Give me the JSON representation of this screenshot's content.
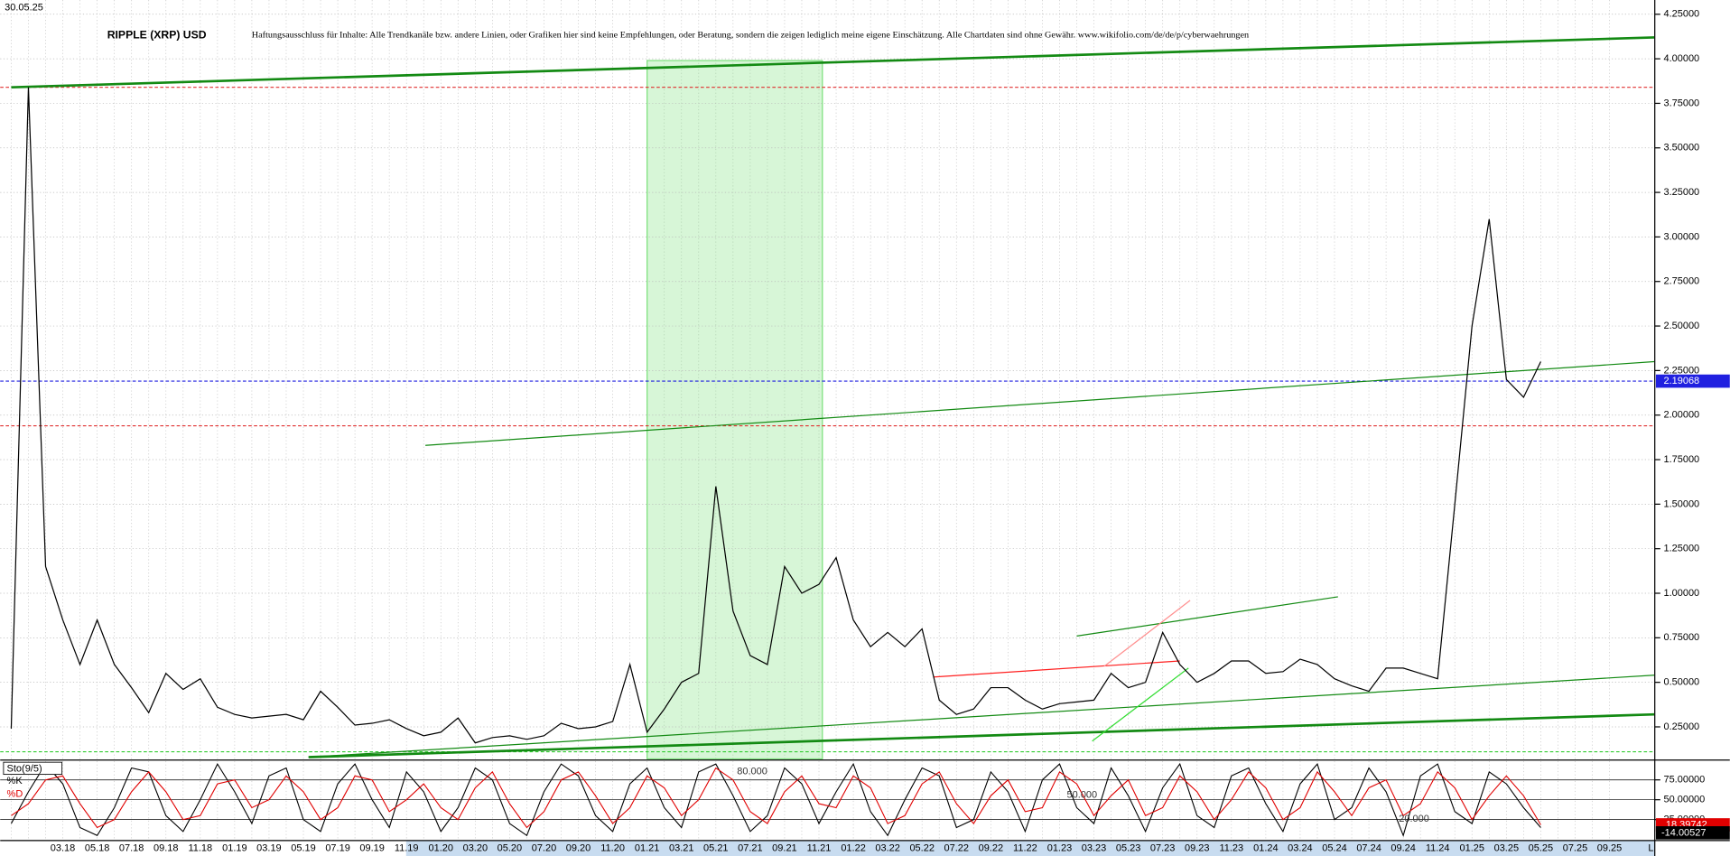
{
  "chart_data": [
    {
      "type": "line",
      "date": "30.05.25",
      "title": "RIPPLE (XRP) USD",
      "subtitle": "Haftungsausschluss für Inhalte: Alle Trendkanäle bzw. andere Linien, oder Grafiken hier sind keine Empfehlungen, oder Beratung, sondern die zeigen lediglich meine eigene Einschätzung. Alle Chartdaten sind ohne Gewähr. www.wikifolio.com/de/de/p/cyberwaehrungen",
      "categories": [
        null,
        null,
        null,
        "03.18",
        null,
        "05.18",
        null,
        "07.18",
        null,
        "09.18",
        null,
        "11.18",
        null,
        "01.19",
        null,
        "03.19",
        null,
        "05.19",
        null,
        "07.19",
        null,
        "09.19",
        null,
        "11.19",
        null,
        "01.20",
        null,
        "03.20",
        null,
        "05.20",
        null,
        "07.20",
        null,
        "09.20",
        null,
        "11.20",
        null,
        "01.21",
        null,
        "03.21",
        null,
        "05.21",
        null,
        "07.21",
        null,
        "09.21",
        null,
        "11.21",
        null,
        "01.22",
        null,
        "03.22",
        null,
        "05.22",
        null,
        "07.22",
        null,
        "09.22",
        null,
        "11.22",
        null,
        "01.23",
        null,
        "03.23",
        null,
        "05.23",
        null,
        "07.23",
        null,
        "09.23",
        null,
        "11.23",
        null,
        "01.24",
        null,
        "03.24",
        null,
        "05.24",
        null,
        "07.24",
        null,
        "09.24",
        null,
        "11.24",
        null,
        "01.25",
        null,
        "03.25",
        null,
        "05.25",
        null,
        "07.25",
        null,
        "09.25"
      ],
      "x_end_label": "L",
      "values": [
        0.24,
        3.84,
        1.15,
        0.85,
        0.6,
        0.85,
        0.6,
        0.47,
        0.33,
        0.55,
        0.46,
        0.52,
        0.36,
        0.32,
        0.3,
        0.31,
        0.32,
        0.29,
        0.45,
        0.36,
        0.26,
        0.27,
        0.29,
        0.24,
        0.2,
        0.22,
        0.3,
        0.16,
        0.19,
        0.2,
        0.18,
        0.2,
        0.27,
        0.24,
        0.25,
        0.28,
        0.6,
        0.22,
        0.35,
        0.5,
        0.55,
        1.6,
        0.9,
        0.65,
        0.6,
        1.15,
        1.0,
        1.05,
        1.2,
        0.85,
        0.7,
        0.78,
        0.7,
        0.8,
        0.4,
        0.32,
        0.35,
        0.47,
        0.47,
        0.4,
        0.35,
        0.38,
        0.39,
        0.4,
        0.55,
        0.47,
        0.5,
        0.78,
        0.6,
        0.5,
        0.55,
        0.62,
        0.62,
        0.55,
        0.56,
        0.63,
        0.6,
        0.52,
        0.48,
        0.45,
        0.58,
        0.58,
        0.55,
        0.52,
        1.5,
        2.5,
        3.1,
        2.2,
        2.1,
        2.3,
        null,
        null,
        null,
        null
      ],
      "color": "#000000",
      "ylim": [
        0.07,
        4.33
      ],
      "yticks": [
        {
          "value": 0.25,
          "label": "0.25000"
        },
        {
          "value": 0.5,
          "label": "0.50000"
        },
        {
          "value": 0.75,
          "label": "0.75000"
        },
        {
          "value": 1.0,
          "label": "1.00000"
        },
        {
          "value": 1.25,
          "label": "1.25000"
        },
        {
          "value": 1.5,
          "label": "1.50000"
        },
        {
          "value": 1.75,
          "label": "1.75000"
        },
        {
          "value": 2.0,
          "label": "2.00000"
        },
        {
          "value": 2.25,
          "label": "2.25000"
        },
        {
          "value": 2.5,
          "label": "2.50000"
        },
        {
          "value": 2.75,
          "label": "2.75000"
        },
        {
          "value": 3.0,
          "label": "3.00000"
        },
        {
          "value": 3.25,
          "label": "3.25000"
        },
        {
          "value": 3.5,
          "label": "3.50000"
        },
        {
          "value": 3.75,
          "label": "3.75000"
        },
        {
          "value": 4.0,
          "label": "4.00000"
        },
        {
          "value": 4.25,
          "label": "4.25000"
        }
      ],
      "grid": true,
      "hlines": [
        {
          "value": 3.84,
          "color": "#e03030"
        },
        {
          "value": 1.94,
          "color": "#e03030"
        },
        {
          "value": 2.19068,
          "label": "2.19068",
          "color": "#2020e0"
        },
        {
          "value": 0.11,
          "color": "#33cc33"
        }
      ],
      "zone": {
        "x": [
          37,
          47.2
        ],
        "y": [
          0.07,
          3.99
        ],
        "color": "#7be07b"
      },
      "trendlines": [
        {
          "x": [
            0,
            95.6
          ],
          "y": [
            3.84,
            4.12
          ],
          "color": "#138a13",
          "width": 2.2
        },
        {
          "x": [
            24.1,
            95.6
          ],
          "y": [
            1.83,
            2.3
          ],
          "color": "#138a13",
          "width": 1
        },
        {
          "x": [
            17.3,
            95.6
          ],
          "y": [
            0.08,
            0.32
          ],
          "color": "#138a13",
          "width": 2.2
        },
        {
          "x": [
            17.3,
            95.6
          ],
          "y": [
            0.08,
            0.54
          ],
          "color": "#138a13",
          "width": 1
        },
        {
          "x": [
            62,
            77.2
          ],
          "y": [
            0.76,
            0.98
          ],
          "color": "#138a13",
          "width": 1
        },
        {
          "x": [
            53.7,
            68
          ],
          "y": [
            0.53,
            0.62
          ],
          "color": "#ff2020",
          "width": 1
        },
        {
          "x": [
            62.9,
            68.5
          ],
          "y": [
            0.17,
            0.58
          ],
          "color": "#33dd33",
          "width": 1
        },
        {
          "x": [
            63.6,
            68.6
          ],
          "y": [
            0.59,
            0.96
          ],
          "color": "#ff9090",
          "width": 1
        }
      ]
    },
    {
      "type": "line",
      "title": "Sto(9/5)",
      "series": [
        {
          "name": "%K",
          "color": "#000000",
          "values": [
            20,
            60,
            95,
            70,
            15,
            5,
            40,
            90,
            85,
            30,
            10,
            50,
            95,
            60,
            20,
            80,
            90,
            25,
            10,
            70,
            95,
            50,
            15,
            85,
            60,
            10,
            40,
            90,
            75,
            20,
            5,
            60,
            95,
            80,
            30,
            10,
            70,
            90,
            40,
            15,
            85,
            95,
            55,
            10,
            30,
            90,
            70,
            20,
            60,
            95,
            35,
            5,
            50,
            90,
            80,
            15,
            25,
            85,
            60,
            10,
            75,
            95,
            40,
            20,
            90,
            55,
            10,
            65,
            95,
            30,
            15,
            80,
            90,
            45,
            10,
            70,
            95,
            25,
            40,
            90,
            60,
            5,
            80,
            95,
            35,
            20,
            85,
            70,
            40,
            15,
            null,
            null,
            null,
            null
          ]
        },
        {
          "name": "%D",
          "color": "#e00000",
          "values": [
            30,
            45,
            75,
            80,
            45,
            15,
            25,
            60,
            85,
            60,
            25,
            30,
            70,
            75,
            40,
            50,
            80,
            60,
            25,
            40,
            80,
            75,
            35,
            50,
            70,
            40,
            25,
            65,
            85,
            45,
            15,
            35,
            75,
            85,
            55,
            20,
            40,
            80,
            65,
            30,
            50,
            90,
            75,
            35,
            20,
            60,
            80,
            45,
            40,
            80,
            65,
            20,
            30,
            70,
            85,
            45,
            20,
            55,
            75,
            35,
            40,
            85,
            70,
            30,
            55,
            75,
            30,
            40,
            80,
            60,
            25,
            50,
            85,
            65,
            25,
            40,
            85,
            60,
            30,
            65,
            75,
            30,
            45,
            85,
            65,
            25,
            55,
            80,
            55,
            18.39742,
            null,
            null,
            null,
            null
          ],
          "value_labels": [
            null,
            null,
            null,
            null,
            null,
            null,
            null,
            null,
            null,
            null,
            null,
            null,
            null,
            null,
            null,
            null,
            null,
            null,
            null,
            null,
            null,
            null,
            null,
            null,
            null,
            null,
            null,
            null,
            null,
            null,
            null,
            null,
            null,
            null,
            null,
            null,
            null,
            null,
            null,
            null,
            null,
            null,
            null,
            null,
            null,
            null,
            null,
            null,
            null,
            null,
            null,
            null,
            null,
            null,
            null,
            null,
            null,
            null,
            null,
            null,
            null,
            null,
            null,
            null,
            null,
            null,
            null,
            null,
            null,
            null,
            null,
            null,
            null,
            null,
            null,
            null,
            null,
            null,
            null,
            null,
            null,
            null,
            null,
            null,
            null,
            null,
            null,
            null,
            null,
            "18.39742",
            null,
            null,
            null,
            null
          ]
        }
      ],
      "ylim": [
        -1.4,
        98.6
      ],
      "yticks": [
        {
          "value": 75,
          "label": "75.00000"
        },
        {
          "value": 50,
          "label": "50.00000"
        },
        {
          "value": 25,
          "label": "25.00000"
        }
      ],
      "levels": [
        {
          "value": 80,
          "label": "80.000"
        },
        {
          "value": 50,
          "label": "50.000"
        },
        {
          "value": 20,
          "label": "20.000"
        }
      ],
      "bottom_label": "-14.00527"
    }
  ]
}
